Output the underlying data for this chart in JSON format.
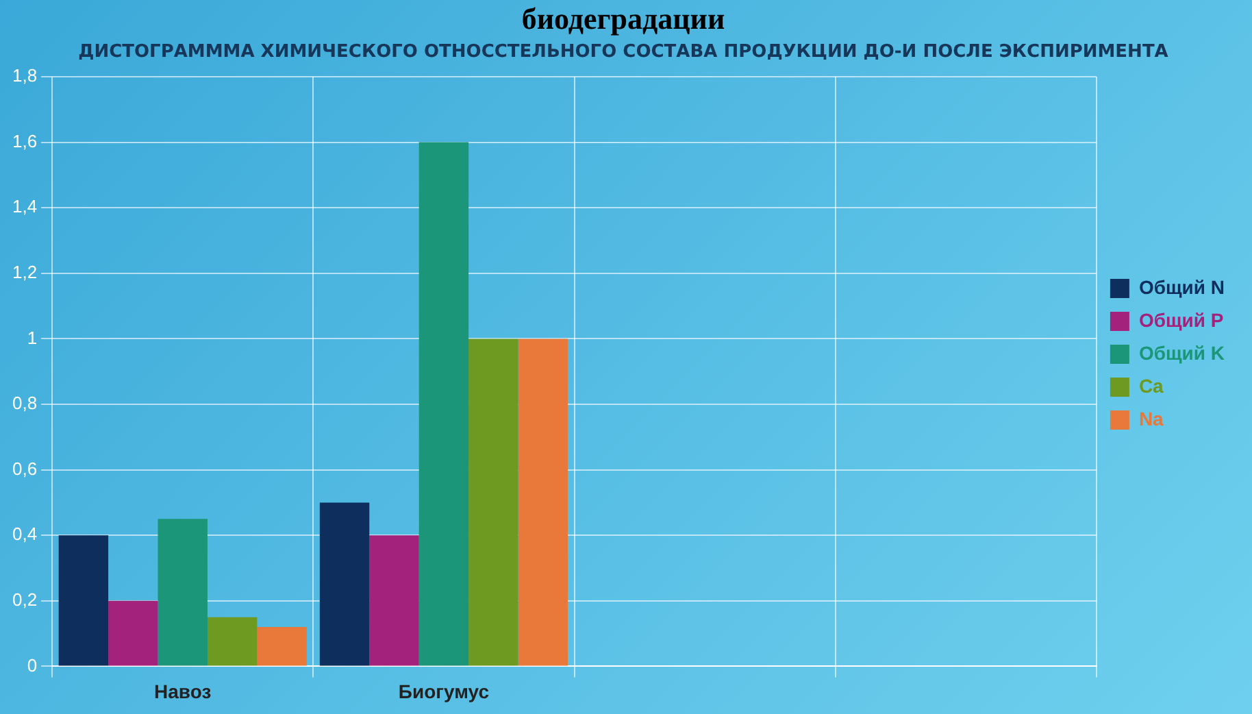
{
  "chart_data": {
    "type": "bar",
    "title": "биодеградации",
    "subtitle": "ДИСТОГРАММMA ХИМИЧЕСКОГО ОТНОССТЕЛЬНОГО СОСТАВА ПРОДУКЦИИ ДО-И ПОСЛЕ ЭКСПИРИМЕНТА",
    "categories": [
      "Навоз",
      "Биогумус",
      null,
      null
    ],
    "series": [
      {
        "name": "Общий N",
        "color": "#0e2f5e",
        "values": [
          0.4,
          0.5,
          null,
          null
        ]
      },
      {
        "name": "Общий P",
        "color": "#a3227c",
        "values": [
          0.2,
          0.4,
          null,
          null
        ]
      },
      {
        "name": "Общий K",
        "color": "#1b9678",
        "values": [
          0.45,
          1.6,
          null,
          null
        ]
      },
      {
        "name": "Ca",
        "color": "#6e9a22",
        "values": [
          0.15,
          1.0,
          null,
          null
        ]
      },
      {
        "name": "Na",
        "color": "#e8793a",
        "values": [
          0.12,
          1.0,
          null,
          null
        ]
      }
    ],
    "ylim": [
      0,
      1.8
    ],
    "yticks": [
      0,
      {
        "value": 0.2,
        "label": "0,2"
      },
      {
        "value": 0.4,
        "label": "0,4"
      },
      {
        "value": 0.6,
        "label": "0,6"
      },
      {
        "value": 0.8,
        "label": "0,8"
      },
      1,
      {
        "value": 1.2,
        "label": "1,2"
      },
      {
        "value": 1.4,
        "label": "1,4"
      },
      {
        "value": 1.6,
        "label": "1,6"
      },
      {
        "value": 1.8,
        "label": "1,8"
      }
    ],
    "grid": true,
    "legend": "right"
  }
}
